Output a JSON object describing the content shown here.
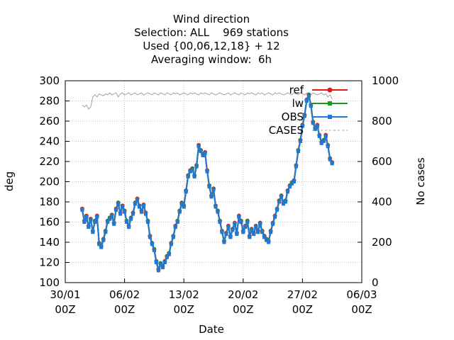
{
  "chart_data": {
    "type": "line",
    "title_lines": [
      "Wind direction",
      "Selection: ALL    969 stations",
      "Used {00,06,12,18} + 12",
      "Averaging window:  6h"
    ],
    "xlabel": "Date",
    "ylabel": "deg",
    "y2label": "No cases",
    "xlim_days": [
      0,
      35
    ],
    "ylim": [
      100,
      300
    ],
    "y2lim": [
      0,
      1000
    ],
    "yticks": [
      100,
      120,
      140,
      160,
      180,
      200,
      220,
      240,
      260,
      280,
      300
    ],
    "y2ticks": [
      0,
      200,
      400,
      600,
      800,
      1000
    ],
    "xtick_labels": [
      {
        "line1": "30/01",
        "line2": "00Z"
      },
      {
        "line1": "06/02",
        "line2": "00Z"
      },
      {
        "line1": "13/02",
        "line2": "00Z"
      },
      {
        "line1": "20/02",
        "line2": "00Z"
      },
      {
        "line1": "27/02",
        "line2": "00Z"
      },
      {
        "line1": "06/03",
        "line2": "00Z"
      }
    ],
    "grid": true,
    "legend_position": "top-right",
    "series": [
      {
        "name": "ref",
        "color": "#e31a1c",
        "marker": "circle"
      },
      {
        "name": "lw",
        "color": "#1a9c1a",
        "marker": "square"
      },
      {
        "name": "OBS",
        "color": "#1f78d8",
        "marker": "square"
      },
      {
        "name": "CASES",
        "color": "#a0a0a0",
        "marker": "none",
        "dashed": true
      }
    ],
    "direction_points": [
      [
        2.0,
        172
      ],
      [
        2.25,
        160
      ],
      [
        2.5,
        165
      ],
      [
        2.75,
        155
      ],
      [
        3.0,
        162
      ],
      [
        3.25,
        150
      ],
      [
        3.5,
        160
      ],
      [
        3.75,
        165
      ],
      [
        4.0,
        138
      ],
      [
        4.25,
        135
      ],
      [
        4.5,
        142
      ],
      [
        4.75,
        150
      ],
      [
        5.0,
        160
      ],
      [
        5.25,
        163
      ],
      [
        5.5,
        166
      ],
      [
        5.75,
        158
      ],
      [
        6.0,
        172
      ],
      [
        6.25,
        178
      ],
      [
        6.5,
        168
      ],
      [
        6.75,
        175
      ],
      [
        7.0,
        170
      ],
      [
        7.25,
        160
      ],
      [
        7.5,
        155
      ],
      [
        7.75,
        163
      ],
      [
        8.0,
        168
      ],
      [
        8.25,
        178
      ],
      [
        8.5,
        182
      ],
      [
        8.75,
        175
      ],
      [
        9.0,
        170
      ],
      [
        9.25,
        176
      ],
      [
        9.5,
        168
      ],
      [
        9.75,
        160
      ],
      [
        10.0,
        145
      ],
      [
        10.25,
        138
      ],
      [
        10.5,
        132
      ],
      [
        10.75,
        120
      ],
      [
        11.0,
        112
      ],
      [
        11.25,
        118
      ],
      [
        11.5,
        115
      ],
      [
        11.75,
        120
      ],
      [
        12.0,
        125
      ],
      [
        12.25,
        128
      ],
      [
        12.5,
        138
      ],
      [
        12.75,
        145
      ],
      [
        13.0,
        155
      ],
      [
        13.25,
        160
      ],
      [
        13.5,
        170
      ],
      [
        13.75,
        178
      ],
      [
        14.0,
        175
      ],
      [
        14.25,
        190
      ],
      [
        14.5,
        205
      ],
      [
        14.75,
        210
      ],
      [
        15.0,
        212
      ],
      [
        15.25,
        205
      ],
      [
        15.5,
        215
      ],
      [
        15.75,
        235
      ],
      [
        16.0,
        230
      ],
      [
        16.25,
        226
      ],
      [
        16.5,
        228
      ],
      [
        16.75,
        210
      ],
      [
        17.0,
        195
      ],
      [
        17.25,
        185
      ],
      [
        17.5,
        192
      ],
      [
        17.75,
        175
      ],
      [
        18.0,
        170
      ],
      [
        18.25,
        160
      ],
      [
        18.5,
        150
      ],
      [
        18.75,
        140
      ],
      [
        19.0,
        148
      ],
      [
        19.25,
        155
      ],
      [
        19.5,
        145
      ],
      [
        19.75,
        152
      ],
      [
        20.0,
        158
      ],
      [
        20.25,
        148
      ],
      [
        20.5,
        165
      ],
      [
        20.75,
        160
      ],
      [
        21.0,
        150
      ],
      [
        21.25,
        155
      ],
      [
        21.5,
        160
      ],
      [
        21.75,
        145
      ],
      [
        22.0,
        152
      ],
      [
        22.25,
        148
      ],
      [
        22.5,
        155
      ],
      [
        22.75,
        150
      ],
      [
        23.0,
        158
      ],
      [
        23.25,
        150
      ],
      [
        23.5,
        145
      ],
      [
        23.75,
        142
      ],
      [
        24.0,
        140
      ],
      [
        24.25,
        150
      ],
      [
        24.5,
        158
      ],
      [
        24.75,
        165
      ],
      [
        25.0,
        172
      ],
      [
        25.25,
        180
      ],
      [
        25.5,
        185
      ],
      [
        25.75,
        178
      ],
      [
        26.0,
        180
      ],
      [
        26.25,
        190
      ],
      [
        26.5,
        195
      ],
      [
        26.75,
        198
      ],
      [
        27.0,
        200
      ],
      [
        27.25,
        215
      ],
      [
        27.5,
        230
      ],
      [
        27.75,
        240
      ],
      [
        28.0,
        255
      ],
      [
        28.25,
        265
      ],
      [
        28.5,
        280
      ],
      [
        28.75,
        285
      ],
      [
        29.0,
        275
      ],
      [
        29.25,
        258
      ],
      [
        29.5,
        252
      ],
      [
        29.75,
        255
      ],
      [
        30.0,
        245
      ],
      [
        30.25,
        238
      ],
      [
        30.5,
        240
      ],
      [
        30.75,
        245
      ],
      [
        31.0,
        235
      ],
      [
        31.25,
        222
      ],
      [
        31.5,
        218
      ]
    ],
    "cases_points": [
      [
        2.0,
        880
      ],
      [
        2.25,
        870
      ],
      [
        2.5,
        880
      ],
      [
        2.75,
        860
      ],
      [
        3.0,
        870
      ],
      [
        3.25,
        920
      ],
      [
        3.5,
        930
      ],
      [
        3.75,
        920
      ],
      [
        4.0,
        935
      ],
      [
        4.25,
        930
      ],
      [
        4.5,
        925
      ],
      [
        4.75,
        935
      ],
      [
        5.0,
        930
      ],
      [
        5.25,
        940
      ],
      [
        5.5,
        930
      ],
      [
        5.75,
        935
      ],
      [
        6.0,
        940
      ],
      [
        6.25,
        920
      ],
      [
        6.5,
        935
      ],
      [
        6.75,
        940
      ],
      [
        7.0,
        930
      ],
      [
        7.25,
        935
      ],
      [
        7.5,
        940
      ],
      [
        7.75,
        930
      ],
      [
        8.0,
        935
      ],
      [
        8.25,
        940
      ],
      [
        8.5,
        930
      ],
      [
        8.75,
        935
      ],
      [
        9.0,
        940
      ],
      [
        9.25,
        930
      ],
      [
        9.5,
        935
      ],
      [
        9.75,
        940
      ],
      [
        10.0,
        935
      ],
      [
        10.25,
        930
      ],
      [
        10.5,
        940
      ],
      [
        10.75,
        935
      ],
      [
        11.0,
        930
      ],
      [
        11.25,
        940
      ],
      [
        11.5,
        935
      ],
      [
        11.75,
        930
      ],
      [
        12.0,
        940
      ],
      [
        12.25,
        935
      ],
      [
        12.5,
        930
      ],
      [
        12.75,
        940
      ],
      [
        13.0,
        935
      ],
      [
        13.25,
        940
      ],
      [
        13.5,
        930
      ],
      [
        13.75,
        935
      ],
      [
        14.0,
        940
      ],
      [
        14.25,
        935
      ],
      [
        14.5,
        930
      ],
      [
        14.75,
        940
      ],
      [
        15.0,
        935
      ],
      [
        15.25,
        940
      ],
      [
        15.5,
        935
      ],
      [
        15.75,
        930
      ],
      [
        16.0,
        940
      ],
      [
        16.25,
        935
      ],
      [
        16.5,
        940
      ],
      [
        16.75,
        935
      ],
      [
        17.0,
        930
      ],
      [
        17.25,
        940
      ],
      [
        17.5,
        935
      ],
      [
        17.75,
        930
      ],
      [
        18.0,
        935
      ],
      [
        18.25,
        940
      ],
      [
        18.5,
        935
      ],
      [
        18.75,
        930
      ],
      [
        19.0,
        935
      ],
      [
        19.25,
        940
      ],
      [
        19.5,
        930
      ],
      [
        19.75,
        935
      ],
      [
        20.0,
        940
      ],
      [
        20.25,
        935
      ],
      [
        20.5,
        930
      ],
      [
        20.75,
        940
      ],
      [
        21.0,
        935
      ],
      [
        21.25,
        930
      ],
      [
        21.5,
        940
      ],
      [
        21.75,
        935
      ],
      [
        22.0,
        940
      ],
      [
        22.25,
        935
      ],
      [
        22.5,
        930
      ],
      [
        22.75,
        940
      ],
      [
        23.0,
        935
      ],
      [
        23.25,
        940
      ],
      [
        23.5,
        930
      ],
      [
        23.75,
        935
      ],
      [
        24.0,
        940
      ],
      [
        24.25,
        935
      ],
      [
        24.5,
        930
      ],
      [
        24.75,
        940
      ],
      [
        25.0,
        935
      ],
      [
        25.25,
        940
      ],
      [
        25.5,
        935
      ],
      [
        25.75,
        930
      ],
      [
        26.0,
        935
      ],
      [
        26.25,
        940
      ],
      [
        26.5,
        935
      ],
      [
        26.75,
        930
      ],
      [
        27.0,
        940
      ],
      [
        27.25,
        935
      ],
      [
        27.5,
        930
      ],
      [
        27.75,
        940
      ],
      [
        28.0,
        935
      ],
      [
        28.25,
        930
      ],
      [
        28.5,
        940
      ],
      [
        28.75,
        935
      ],
      [
        29.0,
        930
      ],
      [
        29.25,
        940
      ],
      [
        29.5,
        935
      ],
      [
        29.75,
        930
      ],
      [
        30.0,
        935
      ],
      [
        30.25,
        940
      ],
      [
        30.5,
        930
      ],
      [
        30.75,
        935
      ],
      [
        31.0,
        920
      ],
      [
        31.25,
        930
      ],
      [
        31.5,
        910
      ]
    ]
  }
}
